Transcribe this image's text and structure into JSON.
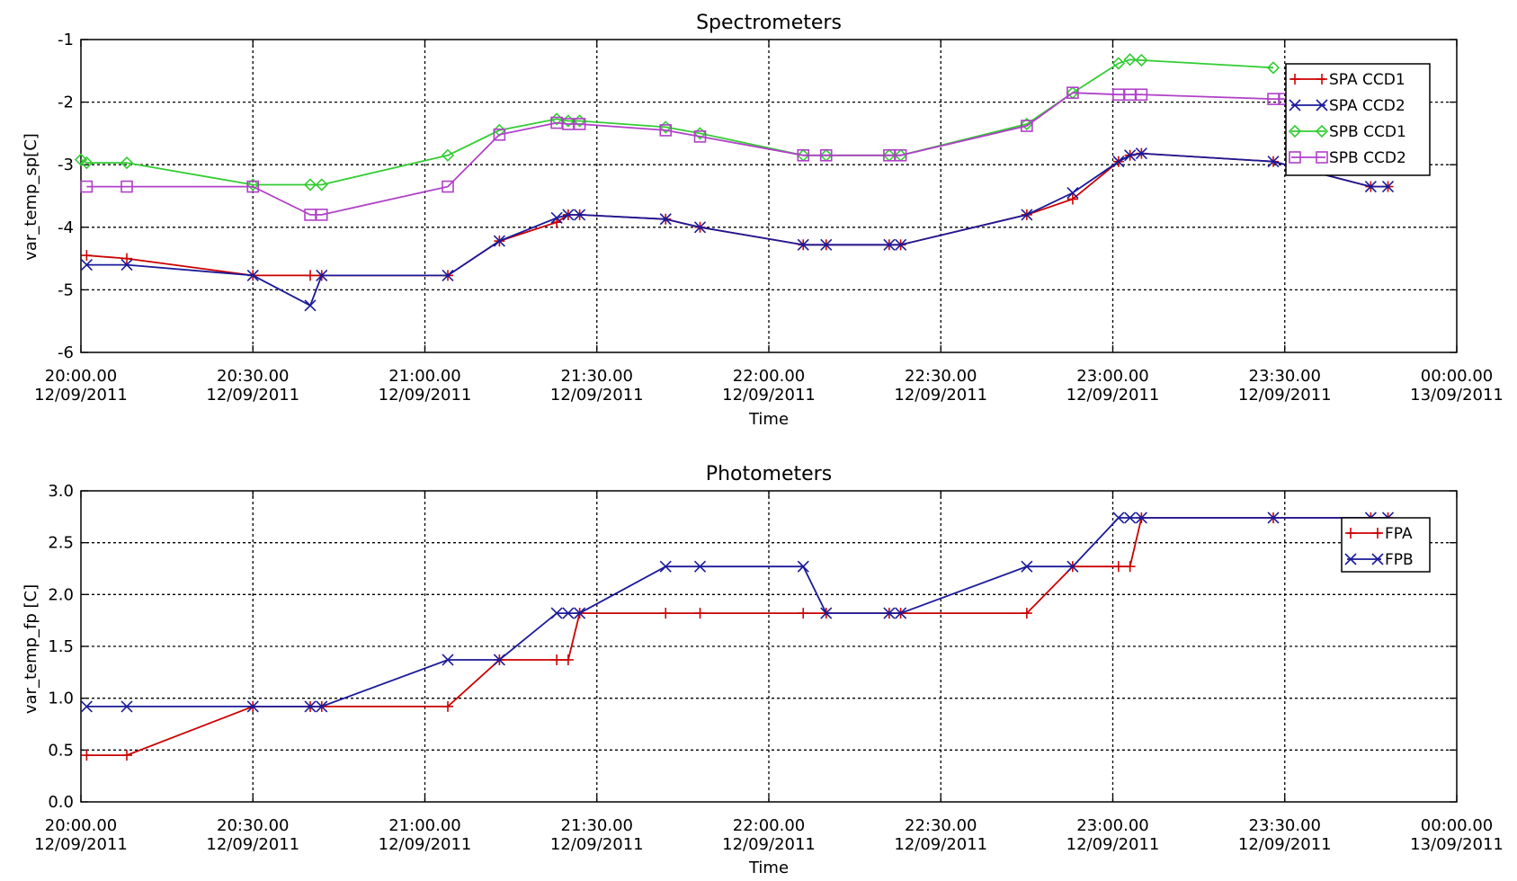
{
  "chart_data": [
    {
      "type": "line",
      "title": "Spectrometers",
      "xlabel": "Time",
      "ylabel": "var_temp_sp[C]",
      "xlim": [
        "12/09/2011 20:00:00",
        "13/09/2011 00:00:00"
      ],
      "ylim": [
        -6,
        -1
      ],
      "yticks": [
        "-6",
        "-5",
        "-4",
        "-3",
        "-2",
        "-1"
      ],
      "xticks": [
        [
          "20:00.00",
          "12/09/2011"
        ],
        [
          "20:30.00",
          "12/09/2011"
        ],
        [
          "21:00.00",
          "12/09/2011"
        ],
        [
          "21:30.00",
          "12/09/2011"
        ],
        [
          "22:00.00",
          "12/09/2011"
        ],
        [
          "22:30.00",
          "12/09/2011"
        ],
        [
          "23:00.00",
          "12/09/2011"
        ],
        [
          "23:30.00",
          "12/09/2011"
        ],
        [
          "00:00.00",
          "13/09/2011"
        ]
      ],
      "grid": true,
      "legend_position": "top-right",
      "series": [
        {
          "name": "SPA CCD1",
          "color": "#cc0000",
          "marker": "plus",
          "x": [
            "20:01",
            "20:08",
            "20:30",
            "20:40",
            "20:42",
            "21:04",
            "21:13",
            "21:23",
            "21:25",
            "21:27",
            "21:42",
            "21:48",
            "22:06",
            "22:10",
            "22:21",
            "22:23",
            "22:45",
            "22:53",
            "23:01",
            "23:03",
            "23:05",
            "23:28",
            "23:45",
            "23:48"
          ],
          "y": [
            -4.45,
            -4.5,
            -4.77,
            -4.77,
            -4.77,
            -4.77,
            -4.22,
            -3.92,
            -3.8,
            -3.8,
            -3.87,
            -4.0,
            -4.28,
            -4.28,
            -4.28,
            -4.28,
            -3.8,
            -3.55,
            -2.95,
            -2.85,
            -2.82,
            -2.95,
            -3.35,
            -3.35
          ]
        },
        {
          "name": "SPA CCD2",
          "color": "#1a1a99",
          "marker": "x",
          "x": [
            "20:01",
            "20:08",
            "20:30",
            "20:40",
            "20:42",
            "21:04",
            "21:13",
            "21:23",
            "21:25",
            "21:27",
            "21:42",
            "21:48",
            "22:06",
            "22:10",
            "22:21",
            "22:23",
            "22:45",
            "22:53",
            "23:01",
            "23:03",
            "23:05",
            "23:28",
            "23:45",
            "23:48"
          ],
          "y": [
            -4.6,
            -4.6,
            -4.77,
            -5.25,
            -4.77,
            -4.77,
            -4.22,
            -3.85,
            -3.8,
            -3.8,
            -3.87,
            -4.0,
            -4.28,
            -4.28,
            -4.28,
            -4.28,
            -3.8,
            -3.45,
            -2.95,
            -2.85,
            -2.82,
            -2.95,
            -3.35,
            -3.35
          ]
        },
        {
          "name": "SPB CCD1",
          "color": "#33cc33",
          "marker": "diamond",
          "x": [
            "20:00",
            "20:01",
            "20:08",
            "20:30",
            "20:40",
            "20:42",
            "21:04",
            "21:13",
            "21:23",
            "21:25",
            "21:27",
            "21:42",
            "21:48",
            "22:06",
            "22:10",
            "22:21",
            "22:23",
            "22:45",
            "22:53",
            "23:01",
            "23:03",
            "23:05",
            "23:28"
          ],
          "y": [
            -2.92,
            -2.97,
            -2.97,
            -3.32,
            -3.32,
            -3.32,
            -2.85,
            -2.45,
            -2.27,
            -2.3,
            -2.3,
            -2.4,
            -2.5,
            -2.85,
            -2.85,
            -2.85,
            -2.85,
            -2.35,
            -1.85,
            -1.38,
            -1.32,
            -1.33,
            -1.45
          ]
        },
        {
          "name": "SPB CCD2",
          "color": "#b040c8",
          "marker": "square",
          "x": [
            "20:01",
            "20:08",
            "20:30",
            "20:40",
            "20:42",
            "21:04",
            "21:13",
            "21:23",
            "21:25",
            "21:27",
            "21:42",
            "21:48",
            "22:06",
            "22:10",
            "22:21",
            "22:23",
            "22:45",
            "22:53",
            "23:01",
            "23:03",
            "23:05",
            "23:28",
            "23:30"
          ],
          "y": [
            -3.35,
            -3.35,
            -3.35,
            -3.8,
            -3.8,
            -3.35,
            -2.52,
            -2.33,
            -2.35,
            -2.35,
            -2.45,
            -2.55,
            -2.85,
            -2.85,
            -2.85,
            -2.85,
            -2.38,
            -1.85,
            -1.88,
            -1.88,
            -1.88,
            -1.95,
            -1.95
          ]
        }
      ]
    },
    {
      "type": "line",
      "title": "Photometers",
      "xlabel": "Time",
      "ylabel": "var_temp_fp [C]",
      "xlim": [
        "12/09/2011 20:00:00",
        "13/09/2011 00:00:00"
      ],
      "ylim": [
        0.0,
        3.0
      ],
      "yticks": [
        "0.0",
        "0.5",
        "1.0",
        "1.5",
        "2.0",
        "2.5",
        "3.0"
      ],
      "xticks": [
        [
          "20:00.00",
          "12/09/2011"
        ],
        [
          "20:30.00",
          "12/09/2011"
        ],
        [
          "21:00.00",
          "12/09/2011"
        ],
        [
          "21:30.00",
          "12/09/2011"
        ],
        [
          "22:00.00",
          "12/09/2011"
        ],
        [
          "22:30.00",
          "12/09/2011"
        ],
        [
          "23:00.00",
          "12/09/2011"
        ],
        [
          "23:30.00",
          "12/09/2011"
        ],
        [
          "00:00.00",
          "13/09/2011"
        ]
      ],
      "grid": true,
      "legend_position": "top-right",
      "series": [
        {
          "name": "FPA",
          "color": "#cc0000",
          "marker": "plus",
          "x": [
            "20:01",
            "20:08",
            "20:30",
            "20:40",
            "20:42",
            "21:04",
            "21:13",
            "21:23",
            "21:25",
            "21:27",
            "21:42",
            "21:48",
            "22:06",
            "22:10",
            "22:21",
            "22:23",
            "22:45",
            "22:53",
            "23:01",
            "23:03",
            "23:05",
            "23:28",
            "23:45",
            "23:48"
          ],
          "y": [
            0.45,
            0.45,
            0.92,
            0.92,
            0.92,
            0.92,
            1.37,
            1.37,
            1.37,
            1.82,
            1.82,
            1.82,
            1.82,
            1.82,
            1.82,
            1.82,
            1.82,
            2.27,
            2.27,
            2.27,
            2.74,
            2.74,
            2.74,
            2.74
          ]
        },
        {
          "name": "FPB",
          "color": "#1a1a99",
          "marker": "x",
          "x": [
            "20:01",
            "20:08",
            "20:30",
            "20:40",
            "20:42",
            "21:04",
            "21:13",
            "21:23",
            "21:25",
            "21:27",
            "21:42",
            "21:48",
            "22:06",
            "22:10",
            "22:21",
            "22:23",
            "22:45",
            "22:53",
            "23:01",
            "23:03",
            "23:05",
            "23:28",
            "23:45",
            "23:48"
          ],
          "y": [
            0.92,
            0.92,
            0.92,
            0.92,
            0.92,
            1.37,
            1.37,
            1.82,
            1.82,
            1.82,
            2.27,
            2.27,
            2.27,
            1.82,
            1.82,
            1.82,
            2.27,
            2.27,
            2.74,
            2.74,
            2.74,
            2.74,
            2.74,
            2.74
          ]
        }
      ]
    }
  ]
}
